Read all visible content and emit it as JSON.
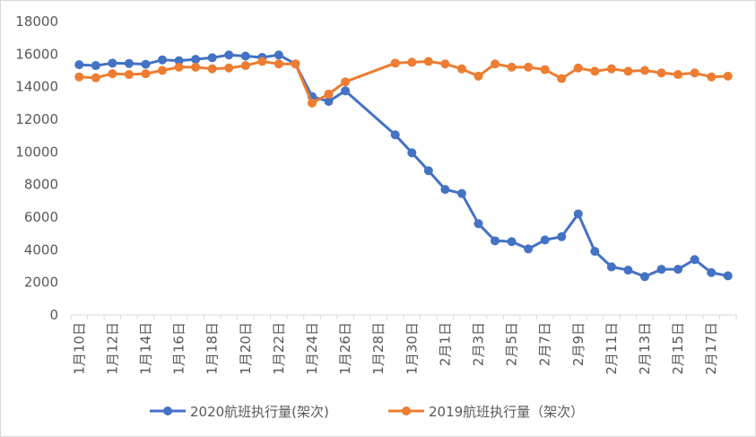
{
  "chart_data": {
    "type": "line",
    "title": "",
    "xlabel": "",
    "ylabel": "",
    "ylim": [
      0,
      18000
    ],
    "yticks": [
      0,
      2000,
      4000,
      6000,
      8000,
      10000,
      12000,
      14000,
      16000,
      18000
    ],
    "grid": false,
    "legend_position": "bottom",
    "categories": [
      "1月10日",
      "1月11日",
      "1月12日",
      "1月13日",
      "1月14日",
      "1月15日",
      "1月16日",
      "1月17日",
      "1月18日",
      "1月19日",
      "1月20日",
      "1月21日",
      "1月22日",
      "1月23日",
      "1月24日",
      "1月25日",
      "1月26日",
      "1月27日",
      "1月28日",
      "1月29日",
      "1月30日",
      "1月31日",
      "2月1日",
      "2月2日",
      "2月3日",
      "2月4日",
      "2月5日",
      "2月6日",
      "2月7日",
      "2月8日",
      "2月9日",
      "2月10日",
      "2月11日",
      "2月12日",
      "2月13日",
      "2月14日",
      "2月15日",
      "2月16日",
      "2月17日",
      "2月18日"
    ],
    "tick_labels": [
      "1月10日",
      "1月12日",
      "1月14日",
      "1月16日",
      "1月18日",
      "1月20日",
      "1月22日",
      "1月24日",
      "1月26日",
      "1月28日",
      "1月30日",
      "2月1日",
      "2月3日",
      "2月5日",
      "2月7日",
      "2月9日",
      "2月11日",
      "2月13日",
      "2月15日",
      "2月17日"
    ],
    "series": [
      {
        "name": "2020航班执行量(架次)",
        "color": "#4472C4",
        "values": [
          15350,
          15300,
          15450,
          15430,
          15380,
          15650,
          15600,
          15680,
          15780,
          15950,
          15880,
          15800,
          15950,
          15400,
          13400,
          13100,
          13750,
          null,
          null,
          11050,
          9950,
          8850,
          7700,
          7450,
          5600,
          4550,
          4500,
          4050,
          4600,
          4800,
          6200,
          3900,
          2950,
          2750,
          2350,
          2800,
          2800,
          3400,
          2600,
          2400
        ]
      },
      {
        "name": "2019航班执行量（架次）",
        "color": "#ED7D31",
        "values": [
          14600,
          14550,
          14800,
          14750,
          14800,
          15000,
          15200,
          15200,
          15100,
          15150,
          15300,
          15550,
          15400,
          15400,
          13000,
          13550,
          14300,
          null,
          null,
          15450,
          15500,
          15550,
          15400,
          15100,
          14650,
          15400,
          15200,
          15200,
          15050,
          14500,
          15150,
          14950,
          15100,
          14950,
          15000,
          14850,
          14750,
          14850,
          14600,
          14650
        ]
      }
    ]
  }
}
